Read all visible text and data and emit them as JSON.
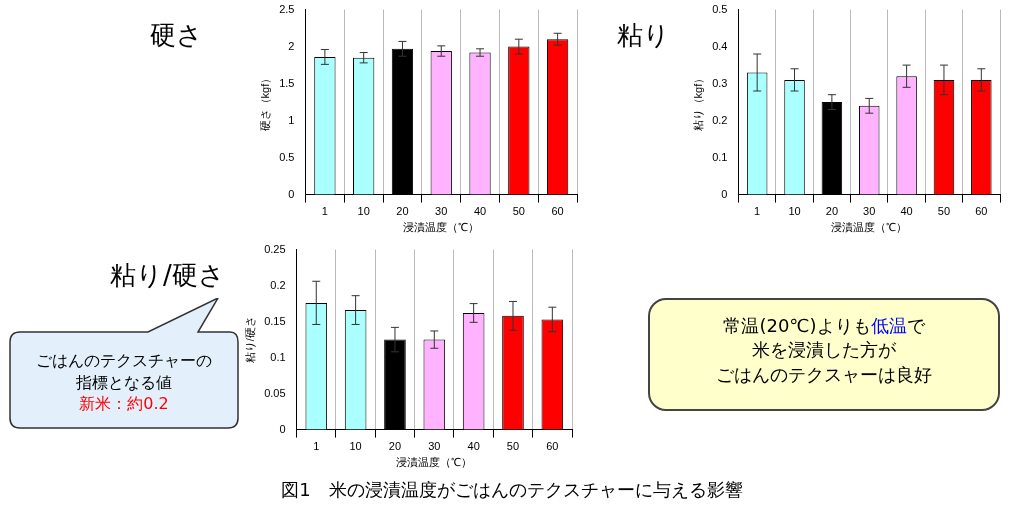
{
  "chart_data": [
    {
      "type": "bar",
      "title": "硬さ",
      "xlabel": "浸漬温度（℃）",
      "ylabel": "硬さ（kgf）",
      "categories": [
        "1",
        "10",
        "20",
        "30",
        "40",
        "50",
        "60"
      ],
      "values": [
        1.86,
        1.85,
        1.97,
        1.94,
        1.92,
        2.0,
        2.1
      ],
      "errors": [
        0.1,
        0.07,
        0.1,
        0.07,
        0.05,
        0.1,
        0.08
      ],
      "colors": [
        "#aaffff",
        "#aaffff",
        "#000000",
        "#ffb3ff",
        "#ffb3ff",
        "#ff0000",
        "#ff0000"
      ],
      "ylim": [
        0,
        2.5
      ],
      "yticks": [
        0,
        0.5,
        1,
        1.5,
        2,
        2.5
      ],
      "grid": "x"
    },
    {
      "type": "bar",
      "title": "粘り",
      "xlabel": "浸漬温度（℃）",
      "ylabel": "粘り（kgf）",
      "categories": [
        "1",
        "10",
        "20",
        "30",
        "40",
        "50",
        "60"
      ],
      "values": [
        0.33,
        0.31,
        0.25,
        0.24,
        0.32,
        0.31,
        0.31
      ],
      "errors": [
        0.05,
        0.03,
        0.02,
        0.02,
        0.03,
        0.04,
        0.03
      ],
      "colors": [
        "#aaffff",
        "#aaffff",
        "#000000",
        "#ffb3ff",
        "#ffb3ff",
        "#ff0000",
        "#ff0000"
      ],
      "ylim": [
        0,
        0.5
      ],
      "yticks": [
        0,
        0.1,
        0.2,
        0.3,
        0.4,
        0.5
      ],
      "grid": "x",
      "annotations": [
        "常温(20℃)よりも",
        "低温",
        "で",
        "米を浸漬した方が",
        "ごはんのテクスャーは良好"
      ]
    },
    {
      "type": "bar",
      "title": "粘り/硬さ",
      "xlabel": "浸漬温度（℃）",
      "ylabel": "粘り/硬さ",
      "categories": [
        "1",
        "10",
        "20",
        "30",
        "40",
        "50",
        "60"
      ],
      "values": [
        0.176,
        0.166,
        0.125,
        0.125,
        0.162,
        0.158,
        0.153
      ],
      "errors": [
        0.03,
        0.02,
        0.017,
        0.012,
        0.013,
        0.02,
        0.017
      ],
      "colors": [
        "#aaffff",
        "#aaffff",
        "#000000",
        "#ffb3ff",
        "#ffb3ff",
        "#ff0000",
        "#ff0000"
      ],
      "ylim": [
        0,
        0.25
      ],
      "yticks": [
        0,
        0.05,
        0.1,
        0.15,
        0.2,
        0.25
      ],
      "grid": "x",
      "annotations": [
        "ごはんのテクスチャーの",
        "指標となる値",
        "新米：約0.2",
        "図1　米の浸漬温度がごはんのテクスチャーに与える影響"
      ]
    }
  ]
}
